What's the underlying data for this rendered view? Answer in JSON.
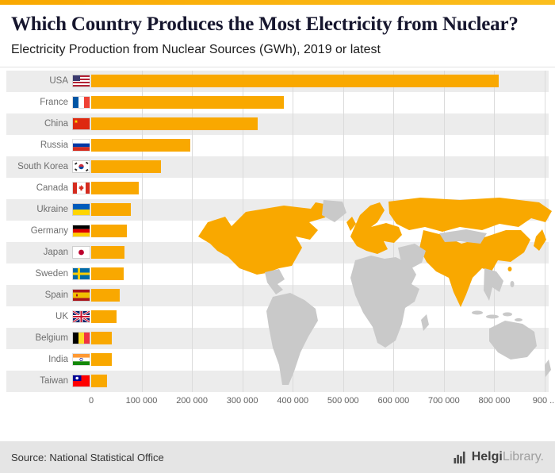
{
  "header": {
    "title": "Which Country Produces the Most Electricity from Nuclear?",
    "subtitle": "Electricity Production from Nuclear Sources (GWh), 2019 or latest"
  },
  "chart_data": {
    "type": "bar",
    "orientation": "horizontal",
    "title": "Which Country Produces the Most Electricity from Nuclear?",
    "subtitle": "Electricity Production from Nuclear Sources (GWh), 2019 or latest",
    "unit": "GWh",
    "categories": [
      "USA",
      "France",
      "China",
      "Russia",
      "South Korea",
      "Canada",
      "Ukraine",
      "Germany",
      "Japan",
      "Sweden",
      "Spain",
      "UK",
      "Belgium",
      "India",
      "Taiwan"
    ],
    "values": [
      809000,
      382000,
      330000,
      196000,
      139000,
      95000,
      78000,
      71000,
      66000,
      64000,
      56000,
      51000,
      41400,
      40700,
      31100
    ],
    "flag_icons": [
      "flag-usa",
      "flag-france",
      "flag-china",
      "flag-russia",
      "flag-south-korea",
      "flag-canada",
      "flag-ukraine",
      "flag-germany",
      "flag-japan",
      "flag-sweden",
      "flag-spain",
      "flag-uk",
      "flag-belgium",
      "flag-india",
      "flag-taiwan"
    ],
    "xlim": [
      0,
      900000
    ],
    "x_tick_labels": [
      "0",
      "100 000",
      "200 000",
      "300 000",
      "400 000",
      "500 000",
      "600 000",
      "700 000",
      "800 000",
      "900 ..."
    ],
    "grid": true,
    "legend": null,
    "background_image": "world-map-with-nuclear-countries-highlighted"
  },
  "footer": {
    "source": "Source: National Statistical Office",
    "logo_bold": "Helgi",
    "logo_light": "Library",
    "logo_suffix": "."
  },
  "colors": {
    "accent": "#F9A800",
    "band": "#ECECEC",
    "grid": "#DBDBDB",
    "map-land": "#C9C9C9",
    "map-highlight": "#F9A800",
    "footer-bg": "#E5E5E5",
    "title": "#16162E"
  }
}
